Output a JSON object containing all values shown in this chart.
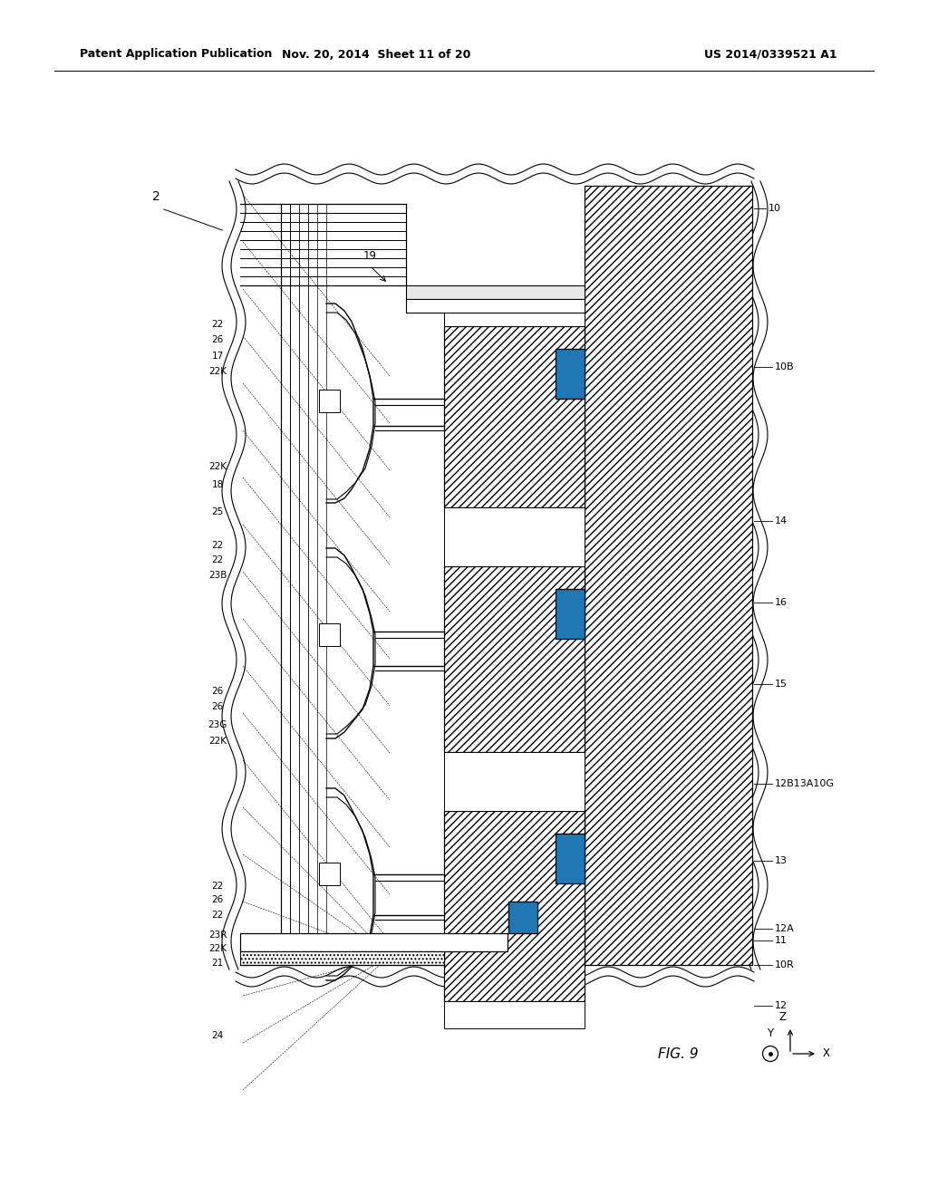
{
  "title_left": "Patent Application Publication",
  "title_mid": "Nov. 20, 2014  Sheet 11 of 20",
  "title_right": "US 2014/0339521 A1",
  "fig_label": "FIG. 9",
  "background_color": "#ffffff",
  "header_fontsize": 9,
  "label_fontsize": 8.5
}
